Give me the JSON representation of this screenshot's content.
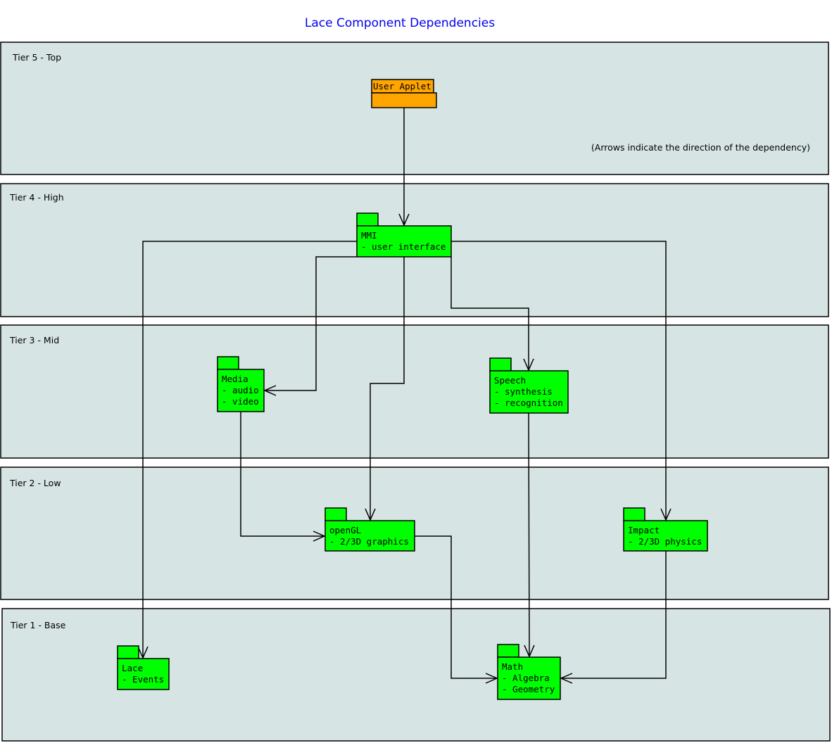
{
  "title": "Lace Component Dependencies",
  "note": "(Arrows indicate the direction of the dependency)",
  "tiers": [
    "Tier 5 - Top",
    "Tier 4 - High",
    "Tier 3 - Mid",
    "Tier 2 - Low",
    "Tier 1 - Base"
  ],
  "nodes": [
    {
      "lines": [
        "User Applet"
      ]
    },
    {
      "lines": [
        "MMI",
        "- user interface"
      ]
    },
    {
      "lines": [
        "Media",
        "- audio",
        "- video"
      ]
    },
    {
      "lines": [
        "Speech",
        "- synthesis",
        "- recognition"
      ]
    },
    {
      "lines": [
        "openGL",
        "- 2/3D graphics"
      ]
    },
    {
      "lines": [
        "Impact",
        "- 2/3D physics"
      ]
    },
    {
      "lines": [
        "Lace",
        "- Events"
      ]
    },
    {
      "lines": [
        "Math",
        "- Algebra",
        "- Geometry"
      ]
    }
  ]
}
